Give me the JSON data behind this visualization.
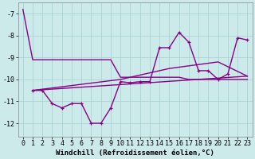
{
  "background_color": "#cceaea",
  "grid_color": "#aad4d4",
  "line_color": "#880088",
  "xlabel": "Windchill (Refroidissement éolien,°C)",
  "xlabel_fontsize": 6.5,
  "tick_fontsize": 6.0,
  "ylim": [
    -12.6,
    -6.5
  ],
  "xlim": [
    -0.5,
    23.5
  ],
  "yticks": [
    -12,
    -11,
    -10,
    -9,
    -8,
    -7
  ],
  "xticks": [
    0,
    1,
    2,
    3,
    4,
    5,
    6,
    7,
    8,
    9,
    10,
    11,
    12,
    13,
    14,
    15,
    16,
    17,
    18,
    19,
    20,
    21,
    22,
    23
  ],
  "series": [
    {
      "x": [
        0,
        1,
        2,
        3,
        4,
        5,
        6,
        7,
        8,
        9,
        10,
        11,
        12,
        13,
        14,
        15,
        16,
        17,
        18,
        19,
        20,
        21,
        22,
        23
      ],
      "y": [
        -6.8,
        -9.1,
        -9.1,
        -9.1,
        -9.1,
        -9.1,
        -9.1,
        -9.1,
        -9.1,
        -9.1,
        -9.9,
        -9.9,
        -9.9,
        -9.9,
        -9.9,
        -9.9,
        -9.9,
        -10.0,
        -10.0,
        -10.0,
        -10.0,
        -10.0,
        -10.0,
        -10.0
      ],
      "marker": false,
      "linewidth": 1.0
    },
    {
      "x": [
        1,
        2,
        3,
        4,
        5,
        6,
        7,
        8,
        9,
        10,
        11,
        12,
        13,
        14,
        15,
        16,
        17,
        18,
        19,
        20,
        21,
        22,
        23
      ],
      "y": [
        -10.5,
        -10.5,
        -11.1,
        -11.3,
        -11.1,
        -11.1,
        -12.0,
        -12.0,
        -11.3,
        -10.1,
        -10.15,
        -10.1,
        -10.1,
        -8.55,
        -8.55,
        -7.85,
        -8.3,
        -9.6,
        -9.6,
        -10.0,
        -9.75,
        -8.1,
        -8.2
      ],
      "marker": true,
      "linewidth": 1.0
    },
    {
      "x": [
        1,
        10,
        15,
        20,
        23
      ],
      "y": [
        -10.5,
        -10.0,
        -9.5,
        -9.2,
        -9.85
      ],
      "marker": false,
      "linewidth": 1.0
    },
    {
      "x": [
        1,
        23
      ],
      "y": [
        -10.5,
        -9.85
      ],
      "marker": false,
      "linewidth": 1.0
    }
  ]
}
